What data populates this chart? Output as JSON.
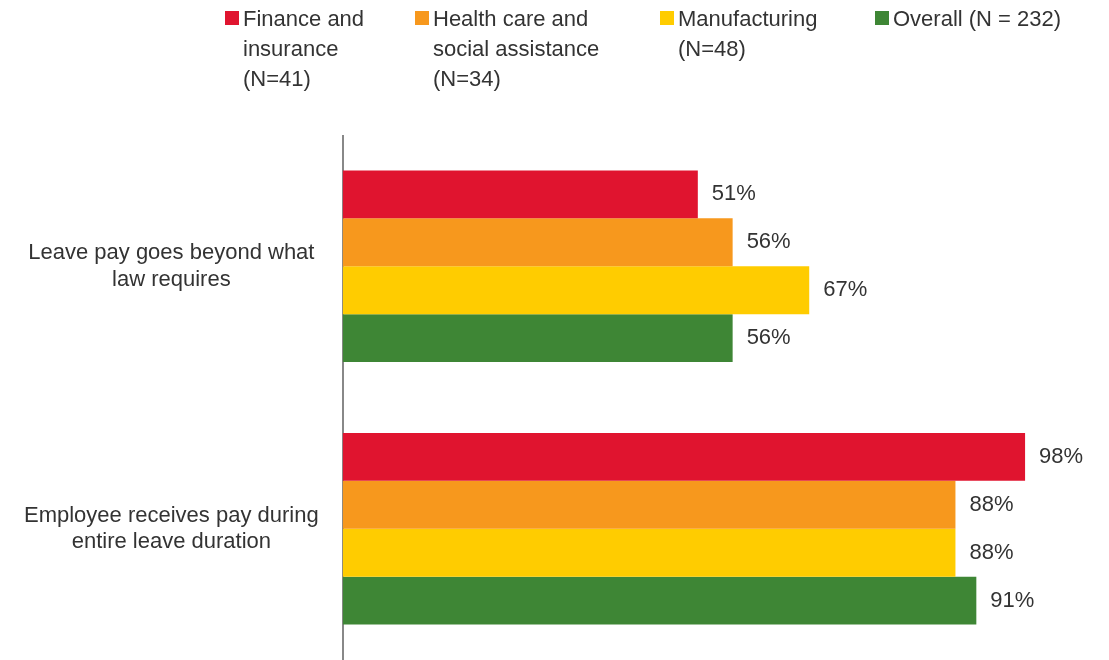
{
  "chart_data": {
    "type": "bar",
    "orientation": "horizontal",
    "categories": [
      "Leave pay goes beyond what law requires",
      "Employee receives pay during entire leave duration"
    ],
    "series": [
      {
        "name": "Finance and insurance (N=41)",
        "color": "#e0142f",
        "values": [
          51,
          98
        ],
        "value_labels": [
          "51%",
          "98%"
        ]
      },
      {
        "name": "Health care and social assistance (N=34)",
        "color": "#f7981d",
        "values": [
          56,
          88
        ],
        "value_labels": [
          "56%",
          "88%"
        ]
      },
      {
        "name": "Manufacturing (N=48)",
        "color": "#ffcc00",
        "values": [
          67,
          88
        ],
        "value_labels": [
          "67%",
          "88%"
        ]
      },
      {
        "name": "Overall (N = 232)",
        "color": "#3e8635",
        "values": [
          56,
          91
        ],
        "value_labels": [
          "56%",
          "91%"
        ]
      }
    ],
    "legend": "top"
  }
}
